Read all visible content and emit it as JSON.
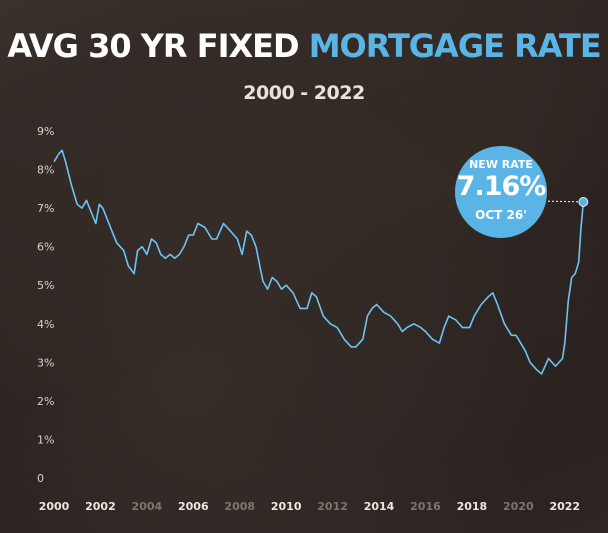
{
  "header": {
    "title_part1": "AVG 30 YR FIXED",
    "title_part2": "MORTGAGE RATE",
    "subtitle": "2000 - 2022"
  },
  "callout": {
    "line1": "NEW RATE",
    "value": "7.16%",
    "line3": "OCT 26'"
  },
  "colors": {
    "accent": "#5bb4e6",
    "line": "#6ec3f0",
    "title_white": "#ffffff"
  },
  "chart_data": {
    "type": "line",
    "title": "AVG 30 YR FIXED MORTGAGE RATE",
    "subtitle": "2000 - 2022",
    "xlabel": "",
    "ylabel": "",
    "ylim": [
      0,
      9
    ],
    "xlim": [
      2000,
      2023
    ],
    "y_ticks": [
      "0",
      "1%",
      "2%",
      "3%",
      "4%",
      "5%",
      "6%",
      "7%",
      "8%",
      "9%"
    ],
    "y_tick_values": [
      0,
      1,
      2,
      3,
      4,
      5,
      6,
      7,
      8,
      9
    ],
    "x_ticks": [
      {
        "label": "2000",
        "value": 2000,
        "emphasis": true
      },
      {
        "label": "2002",
        "value": 2002,
        "emphasis": true
      },
      {
        "label": "2004",
        "value": 2004,
        "emphasis": false
      },
      {
        "label": "2006",
        "value": 2006,
        "emphasis": true
      },
      {
        "label": "2008",
        "value": 2008,
        "emphasis": false
      },
      {
        "label": "2010",
        "value": 2010,
        "emphasis": true
      },
      {
        "label": "2012",
        "value": 2012,
        "emphasis": false
      },
      {
        "label": "2014",
        "value": 2014,
        "emphasis": true
      },
      {
        "label": "2016",
        "value": 2016,
        "emphasis": false
      },
      {
        "label": "2018",
        "value": 2018,
        "emphasis": true
      },
      {
        "label": "2020",
        "value": 2020,
        "emphasis": false
      },
      {
        "label": "2022",
        "value": 2022,
        "emphasis": true
      }
    ],
    "grid": false,
    "legend": "none",
    "series": [
      {
        "x": [
          2000.0,
          2000.2,
          2000.35,
          2000.5,
          2000.75,
          2001.0,
          2001.2,
          2001.4,
          2001.6,
          2001.8,
          2001.95,
          2002.1,
          2002.3,
          2002.5,
          2002.7,
          2002.85,
          2003.0,
          2003.2,
          2003.45,
          2003.6,
          2003.8,
          2004.0,
          2004.2,
          2004.4,
          2004.6,
          2004.8,
          2005.0,
          2005.2,
          2005.4,
          2005.6,
          2005.8,
          2006.0,
          2006.2,
          2006.5,
          2006.8,
          2007.0,
          2007.3,
          2007.6,
          2007.9,
          2008.1,
          2008.3,
          2008.5,
          2008.7,
          2008.9,
          2009.0,
          2009.2,
          2009.4,
          2009.6,
          2009.8,
          2010.0,
          2010.3,
          2010.6,
          2010.9,
          2011.1,
          2011.3,
          2011.6,
          2011.9,
          2012.2,
          2012.5,
          2012.8,
          2013.0,
          2013.3,
          2013.5,
          2013.7,
          2013.9,
          2014.2,
          2014.5,
          2014.8,
          2015.0,
          2015.2,
          2015.5,
          2015.8,
          2016.0,
          2016.3,
          2016.6,
          2016.8,
          2017.0,
          2017.3,
          2017.6,
          2017.9,
          2018.1,
          2018.4,
          2018.7,
          2018.9,
          2019.1,
          2019.4,
          2019.7,
          2019.9,
          2020.1,
          2020.3,
          2020.5,
          2020.8,
          2021.0,
          2021.3,
          2021.6,
          2021.9,
          2022.0,
          2022.15,
          2022.3,
          2022.45,
          2022.6,
          2022.7,
          2022.8
        ],
        "y": [
          8.2,
          8.4,
          8.5,
          8.2,
          7.6,
          7.1,
          7.0,
          7.2,
          6.9,
          6.6,
          7.1,
          7.0,
          6.7,
          6.4,
          6.1,
          6.0,
          5.9,
          5.5,
          5.3,
          5.9,
          6.0,
          5.8,
          6.2,
          6.1,
          5.8,
          5.7,
          5.8,
          5.7,
          5.8,
          6.0,
          6.3,
          6.3,
          6.6,
          6.5,
          6.2,
          6.2,
          6.6,
          6.4,
          6.2,
          5.8,
          6.4,
          6.3,
          6.0,
          5.4,
          5.1,
          4.9,
          5.2,
          5.1,
          4.9,
          5.0,
          4.8,
          4.4,
          4.4,
          4.8,
          4.7,
          4.2,
          4.0,
          3.9,
          3.6,
          3.4,
          3.4,
          3.6,
          4.2,
          4.4,
          4.5,
          4.3,
          4.2,
          4.0,
          3.8,
          3.9,
          4.0,
          3.9,
          3.8,
          3.6,
          3.5,
          3.9,
          4.2,
          4.1,
          3.9,
          3.9,
          4.2,
          4.5,
          4.7,
          4.8,
          4.5,
          4.0,
          3.7,
          3.7,
          3.5,
          3.3,
          3.0,
          2.8,
          2.7,
          3.1,
          2.9,
          3.1,
          3.5,
          4.6,
          5.2,
          5.3,
          5.6,
          6.5,
          7.16
        ]
      }
    ],
    "annotations": [
      {
        "text": "NEW RATE 7.16% OCT 26'",
        "x": 2022.8,
        "y": 7.16
      }
    ]
  }
}
